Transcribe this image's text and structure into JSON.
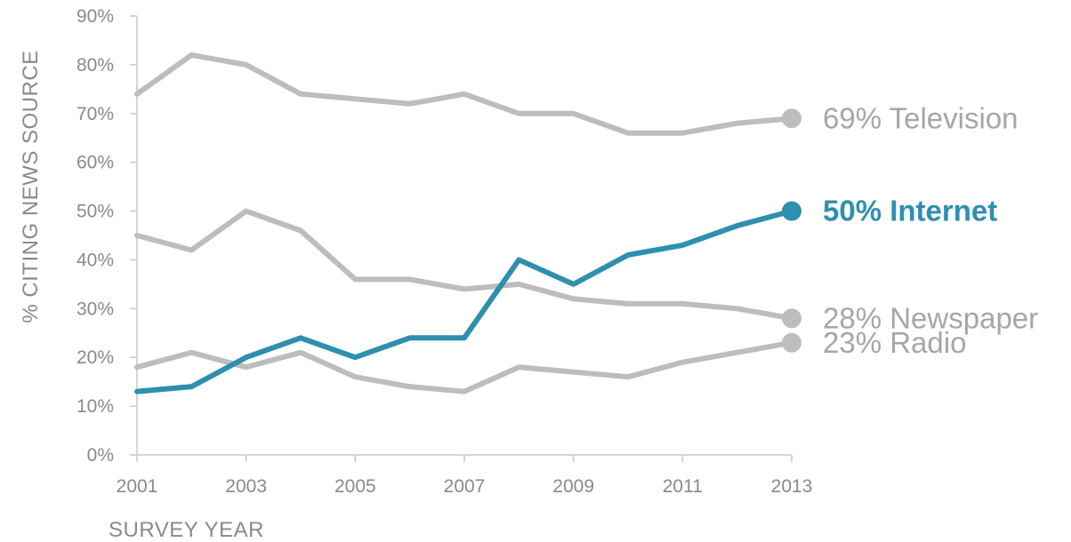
{
  "chart_data": {
    "type": "line",
    "title": "",
    "xlabel": "SURVEY YEAR",
    "ylabel": "% CITING NEWS SOURCE",
    "x": [
      2001,
      2002,
      2003,
      2004,
      2005,
      2006,
      2007,
      2008,
      2009,
      2010,
      2011,
      2012,
      2013
    ],
    "xlim": [
      2001,
      2013
    ],
    "x_ticks": [
      "2001",
      "2003",
      "2005",
      "2007",
      "2009",
      "2011",
      "2013"
    ],
    "ylim": [
      0,
      90
    ],
    "y_ticks": [
      "0%",
      "10%",
      "20%",
      "30%",
      "40%",
      "50%",
      "60%",
      "70%",
      "80%",
      "90%"
    ],
    "grid": false,
    "legend": "none",
    "series": [
      {
        "name": "Television",
        "end_label": "69% Television",
        "color": "#bdbdbd",
        "label_color": "#a6a6a6",
        "highlight": false,
        "values": [
          74,
          82,
          80,
          74,
          73,
          72,
          74,
          70,
          70,
          66,
          66,
          68,
          69
        ]
      },
      {
        "name": "Newspaper",
        "end_label": "28% Newspaper",
        "color": "#bdbdbd",
        "label_color": "#a6a6a6",
        "highlight": false,
        "values": [
          45,
          42,
          50,
          46,
          36,
          36,
          34,
          35,
          32,
          31,
          31,
          30,
          28
        ]
      },
      {
        "name": "Radio",
        "end_label": "23% Radio",
        "color": "#bdbdbd",
        "label_color": "#a6a6a6",
        "highlight": false,
        "values": [
          18,
          21,
          18,
          21,
          16,
          14,
          13,
          18,
          17,
          16,
          19,
          21,
          23
        ]
      },
      {
        "name": "Internet",
        "end_label": "50% Internet",
        "color": "#2e8fb0",
        "label_color": "#2e8fb0",
        "highlight": true,
        "values": [
          13,
          14,
          20,
          24,
          20,
          24,
          24,
          40,
          35,
          41,
          43,
          47,
          50
        ]
      }
    ]
  }
}
